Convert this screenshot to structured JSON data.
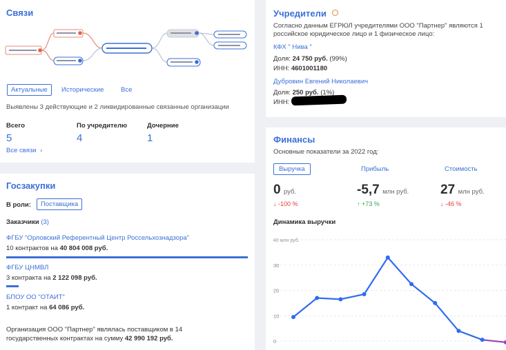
{
  "links": {
    "title": "Связи",
    "tabs": [
      "Актуальные",
      "Исторические",
      "Все"
    ],
    "summary": "Выявлены 3 действующие и 2 ликвидированные связанные организации",
    "stats": [
      {
        "label": "Всего",
        "value": "5"
      },
      {
        "label": "По учредителю",
        "value": "4"
      },
      {
        "label": "Дочерние",
        "value": "1"
      }
    ],
    "all_link": "Все связи",
    "all_arrow": "›"
  },
  "founders": {
    "title": "Учредители",
    "note_line1": "Согласно данным ЕГРЮЛ учредителями ООО \"Партнер\" являются 1",
    "note_line2": "российское юридическое лицо и 1 физическое лицо:",
    "f1_name": "КФХ \" Нива \"",
    "f1_share_label": "Доля:",
    "f1_share_value": "24 750 руб.",
    "f1_share_pct": "(99%)",
    "f1_inn_label": "ИНН:",
    "f1_inn": "4601001180",
    "f2_name": "Дубровин Евгений Николаевич",
    "f2_share_label": "Доля:",
    "f2_share_value": "250 руб.",
    "f2_share_pct": "(1%)",
    "f2_inn_label": "ИНН:"
  },
  "procurement": {
    "title": "Госзакупки",
    "role_label": "В роли:",
    "role_value": "Поставщика",
    "customers_label": "Заказчики",
    "customers_count": "(3)",
    "customers": [
      {
        "name": "ФГБУ \"Орловский Референтный Центр Россельхознадзора\"",
        "prefix": "10 контрактов на",
        "amount": "40 804 008 руб.",
        "share": 1.0
      },
      {
        "name": "ФГБУ ЦНМВЛ",
        "prefix": "3 контракта на",
        "amount": "2 122 098 руб.",
        "share": 0.052
      },
      {
        "name": "БПОУ ОО \"ОТАИТ\"",
        "prefix": "1 контракт на",
        "amount": "64 086 руб.",
        "share": 0.002
      }
    ],
    "footer_line1": "Организация ООО \"Партнер\" являлась поставщиком в 14",
    "footer_line2": "государственных контрактах на сумму",
    "footer_amount": "42 990 192 руб."
  },
  "finance": {
    "title": "Финансы",
    "subtitle": "Основные показатели за 2022 год:",
    "tabs": [
      "Выручка",
      "Прибыль",
      "Стоимость"
    ],
    "metrics": [
      {
        "value": "0",
        "unit": "руб.",
        "change": "-100 %",
        "dir": "down"
      },
      {
        "value": "-5,7",
        "unit": "млн руб.",
        "change": "+73 %",
        "dir": "up"
      },
      {
        "value": "27",
        "unit": "млн руб.",
        "change": "-46 %",
        "dir": "down"
      }
    ],
    "chart_title": "Динамика выручки",
    "colors": {
      "line": "#2f6bf0",
      "tail": "#9b3fbf",
      "down": "#e23b3b",
      "up": "#2ea84a"
    }
  },
  "chart_data": {
    "type": "line",
    "title": "Динамика выручки",
    "unit_label": "40 млн руб.",
    "y_ticks": [
      "0",
      "10",
      "20",
      "30"
    ],
    "ylim": [
      0,
      40
    ],
    "series": [
      {
        "values": [
          9.5,
          17,
          16.5,
          18.5,
          33,
          22.5,
          15,
          4,
          0.5,
          -0.5
        ]
      }
    ],
    "grid": true
  }
}
